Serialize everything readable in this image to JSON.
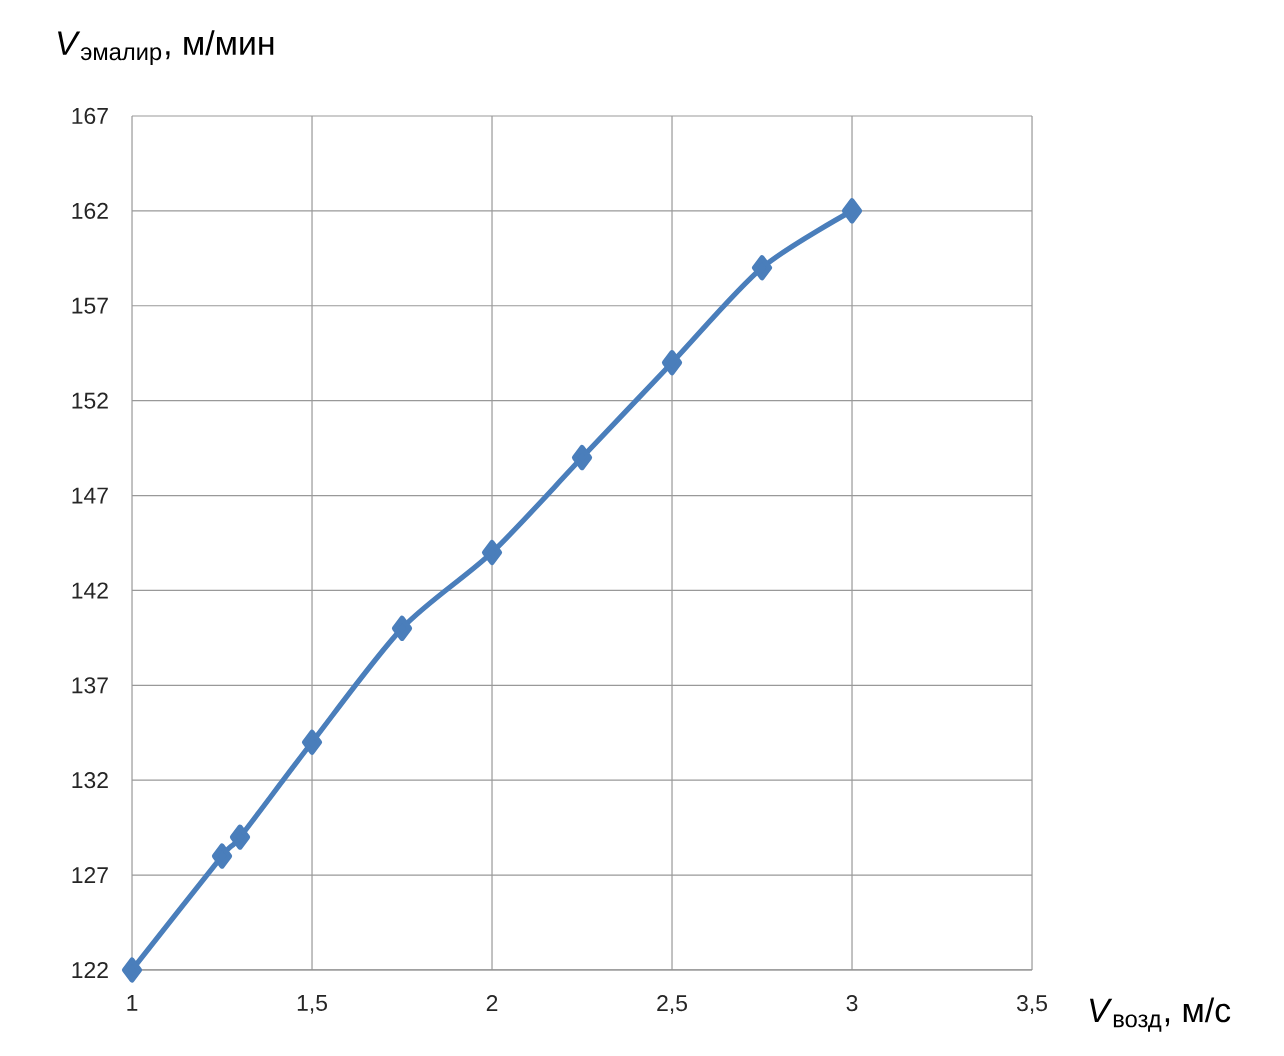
{
  "chart_data": {
    "type": "line",
    "xlabel": "*V*$_{возд}$, м/с",
    "ylabel": "*V*$_{эмалир}$, м/мин",
    "x": [
      1,
      1.25,
      1.3,
      1.5,
      1.75,
      2,
      2.25,
      2.5,
      2.75,
      3
    ],
    "series": [
      {
        "color": "#4a7ebb",
        "values": [
          122,
          128,
          129,
          134,
          140,
          144,
          149,
          154,
          159,
          162
        ]
      }
    ],
    "xlim": [
      1,
      3.5
    ],
    "xticks": [
      1,
      {
        "value": 1.5,
        "label": "1,5"
      },
      2,
      {
        "value": 2.5,
        "label": "2,5"
      },
      3,
      {
        "value": 3.5,
        "label": "3,5"
      }
    ],
    "ylim": [
      122,
      167
    ],
    "yticks": [
      122,
      127,
      132,
      137,
      142,
      147,
      152,
      157,
      162,
      167
    ],
    "grid": true,
    "marker": "diamond",
    "line_style": "solid"
  }
}
